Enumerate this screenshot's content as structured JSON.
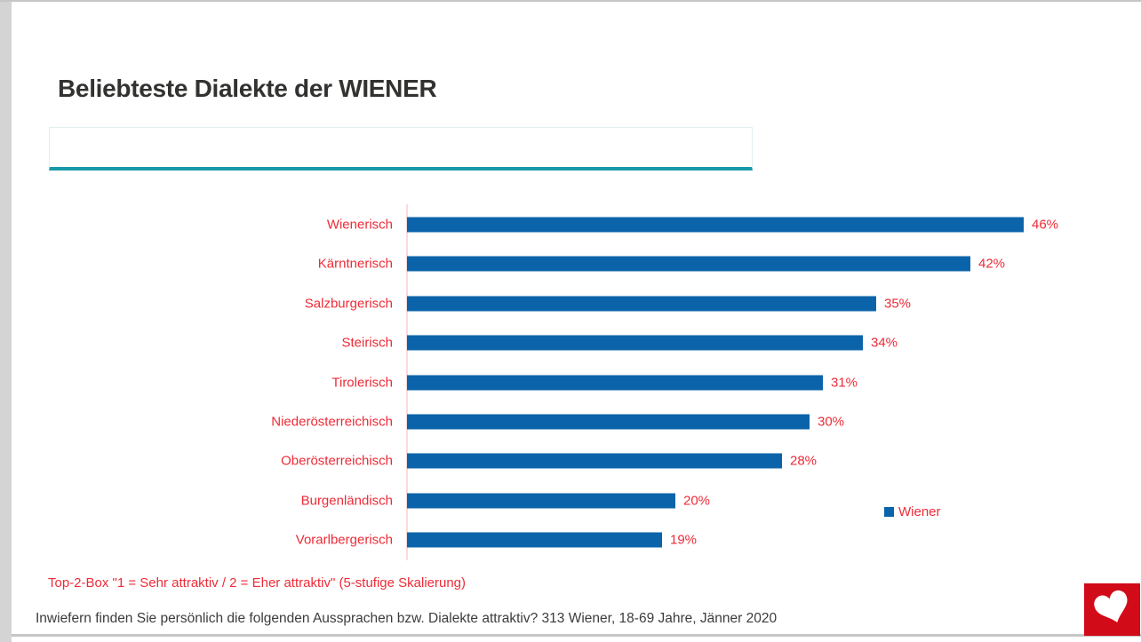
{
  "page": {
    "title": "Beliebteste Dialekte der WIENER",
    "footnote": "Top-2-Box \"1 = Sehr attraktiv / 2 = Eher attraktiv\" (5-stufige Skalierung)",
    "question": "Inwiefern finden Sie persönlich die folgenden Aussprachen bzw. Dialekte attraktiv? 313 Wiener, 18-69 Jahre, Jänner 2020"
  },
  "legend": {
    "label": "Wiener",
    "position": "right"
  },
  "colors": {
    "bar_blue": "#0b64a9",
    "text_red": "#ee2b37",
    "logo_red": "#d20b18",
    "teal_accent": "#1899a8",
    "title_color": "#323230",
    "question_color": "#3c3c3c",
    "axis_line_pink": "#fcd9dc"
  },
  "icons": {
    "logo": "heart-icon"
  },
  "chart_data": {
    "type": "bar",
    "orientation": "horizontal",
    "title": "Beliebteste Dialekte der WIENER",
    "series_name": "Wiener",
    "categories": [
      "Wienerisch",
      "Kärntnerisch",
      "Salzburgerisch",
      "Steirisch",
      "Tirolerisch",
      "Niederösterreichisch",
      "Oberösterreichisch",
      "Burgenländisch",
      "Vorarlbergerisch"
    ],
    "values": [
      46,
      42,
      35,
      34,
      31,
      30,
      28,
      20,
      19
    ],
    "value_suffix": "%",
    "value_labels_shown": true,
    "xlabel": "",
    "ylabel": "",
    "xlim": [
      0,
      50
    ],
    "grid": false,
    "legend_position": "right",
    "bar_color": "#0b64a9",
    "category_label_color": "#ee2b37",
    "value_label_color": "#ee2b37"
  }
}
